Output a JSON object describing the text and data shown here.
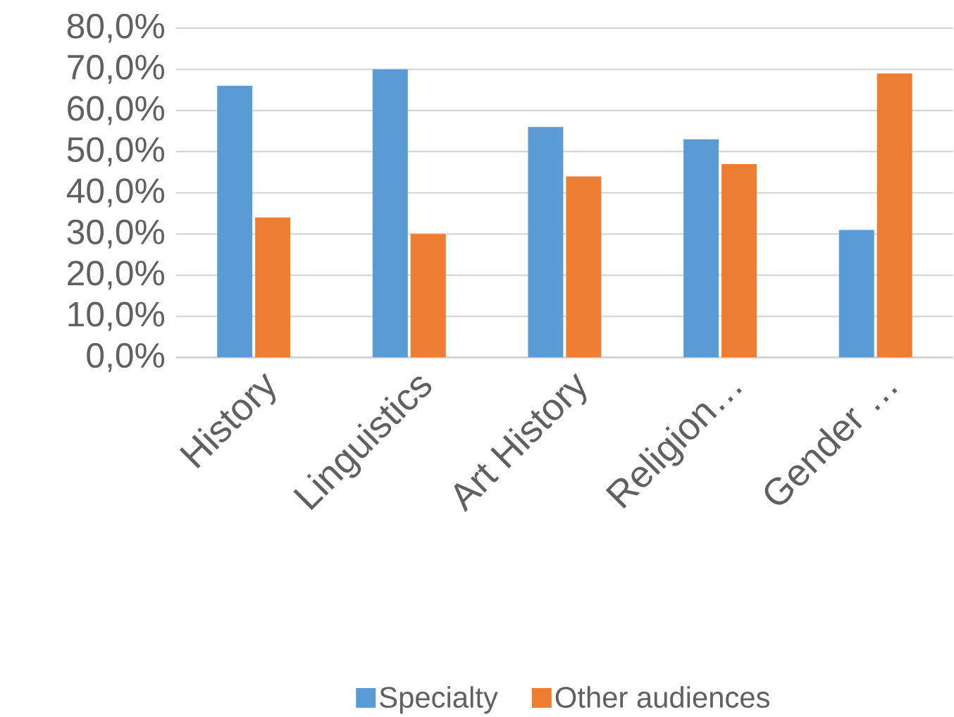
{
  "chart_data": {
    "type": "bar",
    "categories": [
      "History",
      "Linguistics",
      "Art History",
      "Religion…",
      "Gender …"
    ],
    "series": [
      {
        "name": "Specialty",
        "color": "#5b9bd5",
        "values": [
          66,
          70,
          56,
          53,
          31
        ]
      },
      {
        "name": "Other audiences",
        "color": "#ed7d31",
        "values": [
          34,
          30,
          44,
          47,
          69
        ]
      }
    ],
    "ylim": [
      0,
      80
    ],
    "yticks": [
      {
        "value": 0,
        "label": "0,0%"
      },
      {
        "value": 10,
        "label": "10,0%"
      },
      {
        "value": 20,
        "label": "20,0%"
      },
      {
        "value": 30,
        "label": "30,0%"
      },
      {
        "value": 40,
        "label": "40,0%"
      },
      {
        "value": 50,
        "label": "50,0%"
      },
      {
        "value": 60,
        "label": "60,0%"
      },
      {
        "value": 70,
        "label": "70,0%"
      },
      {
        "value": 80,
        "label": "80,0%"
      }
    ],
    "grid": "y",
    "legend": "bottom"
  }
}
